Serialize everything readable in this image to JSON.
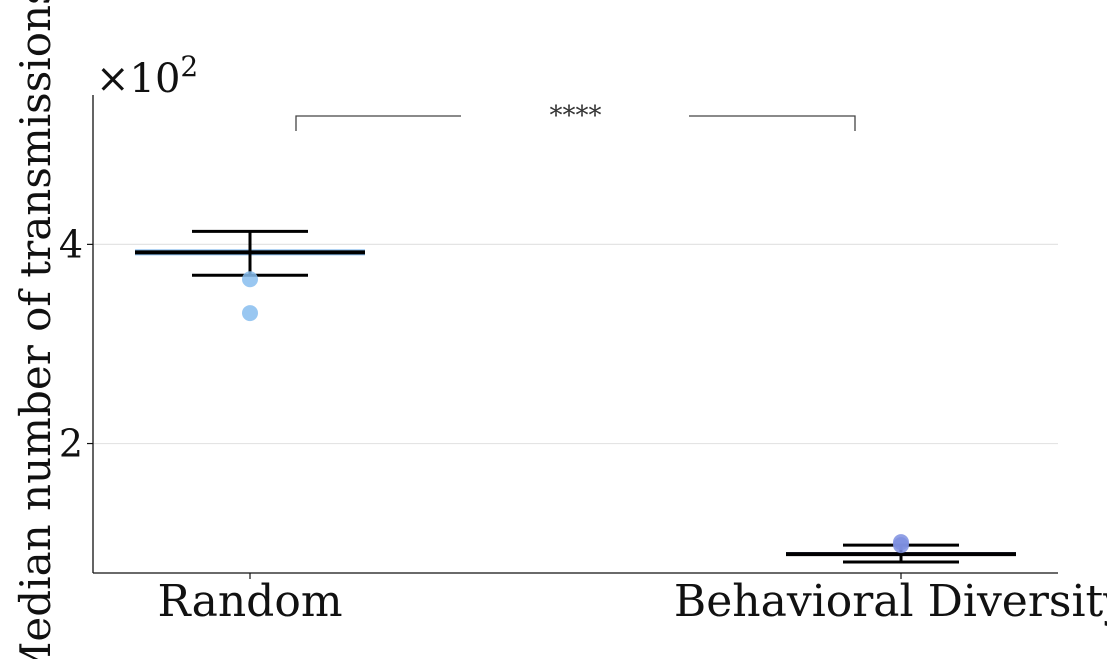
{
  "chart_data": {
    "type": "box",
    "categories": [
      "Random",
      "Behavioral Diversity"
    ],
    "ylabel": "Median number of transmissions",
    "y_multiplier_label": "×10",
    "y_multiplier_exponent": "2",
    "ylim": [
      0.7,
      5.5
    ],
    "yticks": [
      2,
      4
    ],
    "ytick_labels": [
      "2",
      "4"
    ],
    "grid": true,
    "boxes": [
      {
        "category": "Random",
        "median": 3.92,
        "q1": 3.89,
        "q3": 3.95,
        "whisker_low": 3.69,
        "whisker_high": 4.13,
        "fliers": [
          3.65,
          3.31
        ],
        "color": "#87bdee"
      },
      {
        "category": "Behavioral Diversity",
        "median": 0.89,
        "q1": 0.88,
        "q3": 0.91,
        "whisker_low": 0.81,
        "whisker_high": 0.98,
        "fliers": [
          1.01,
          0.98
        ],
        "color": "#7e8fe0"
      }
    ],
    "annotations": [
      {
        "text": "****",
        "between": [
          "Random",
          "Behavioral Diversity"
        ]
      }
    ]
  }
}
